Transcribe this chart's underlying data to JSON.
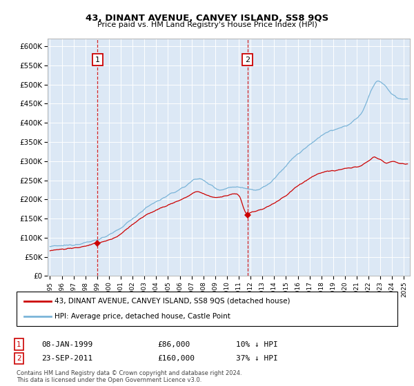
{
  "title": "43, DINANT AVENUE, CANVEY ISLAND, SS8 9QS",
  "subtitle": "Price paid vs. HM Land Registry's House Price Index (HPI)",
  "hpi_label": "HPI: Average price, detached house, Castle Point",
  "property_label": "43, DINANT AVENUE, CANVEY ISLAND, SS8 9QS (detached house)",
  "footnote_line1": "Contains HM Land Registry data © Crown copyright and database right 2024.",
  "footnote_line2": "This data is licensed under the Open Government Licence v3.0.",
  "transactions": [
    {
      "num": "1",
      "date": "08-JAN-1999",
      "price": "£86,000",
      "hpi_diff": "10% ↓ HPI",
      "year": 1999.03,
      "price_val": 86000
    },
    {
      "num": "2",
      "date": "23-SEP-2011",
      "price": "£160,000",
      "hpi_diff": "37% ↓ HPI",
      "year": 2011.73,
      "price_val": 160000
    }
  ],
  "hpi_color": "#7ab4d8",
  "property_color": "#cc0000",
  "vline_color": "#cc0000",
  "background_color": "#dce8f5",
  "grid_color": "#c5d5e5",
  "ylim": [
    0,
    620000
  ],
  "yticks": [
    0,
    50000,
    100000,
    150000,
    200000,
    250000,
    300000,
    350000,
    400000,
    450000,
    500000,
    550000,
    600000
  ],
  "xlim_start": 1994.8,
  "xlim_end": 2025.5,
  "xticks": [
    1995,
    1996,
    1997,
    1998,
    1999,
    2000,
    2001,
    2002,
    2003,
    2004,
    2005,
    2006,
    2007,
    2008,
    2009,
    2010,
    2011,
    2012,
    2013,
    2014,
    2015,
    2016,
    2017,
    2018,
    2019,
    2020,
    2021,
    2022,
    2023,
    2024,
    2025
  ]
}
